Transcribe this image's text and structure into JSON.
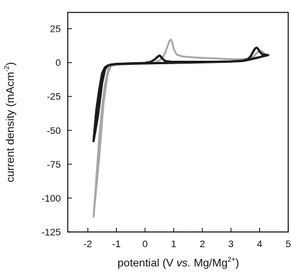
{
  "chart_data": {
    "type": "line",
    "title": "",
    "xlabel_parts": {
      "prefix": "potential (V ",
      "italic": "vs.",
      "middle": " Mg/Mg",
      "sup": "2+",
      "suffix": ")"
    },
    "ylabel_parts": {
      "prefix": "current density (mAcm",
      "sup": "-2",
      "suffix": ")"
    },
    "xlim": [
      -2.7,
      5.0
    ],
    "ylim": [
      -125,
      37
    ],
    "xticks": [
      -2,
      -1,
      0,
      1,
      2,
      3,
      4,
      5
    ],
    "yticks": [
      25,
      0,
      -25,
      -50,
      -75,
      -100,
      -125
    ],
    "xtick_labels": [
      "-2",
      "-1",
      "0",
      "1",
      "2",
      "3",
      "4",
      "5"
    ],
    "ytick_labels": [
      "25",
      "0",
      "-25",
      "-50",
      "-75",
      "-100",
      "-125"
    ],
    "grid": false,
    "legend": "none",
    "series": [
      {
        "color": "#a6a6a6",
        "x": [
          -1.8,
          -1.6,
          -1.45,
          -1.3,
          -1.2,
          -1.1,
          -1.0,
          -0.5,
          0.0,
          0.3,
          0.5,
          0.6,
          0.7,
          0.8,
          0.85,
          0.9,
          0.95,
          1.0,
          1.1,
          1.3,
          1.6,
          2.0,
          2.5,
          3.0,
          3.4,
          3.6,
          3.8,
          3.9,
          4.0,
          4.1,
          4.2,
          4.1,
          3.9,
          3.5,
          3.0,
          2.5,
          2.0,
          1.5,
          1.0,
          0.5,
          0.0,
          -0.5,
          -1.0,
          -1.1,
          -1.2,
          -1.25,
          -1.3,
          -1.4,
          -1.5,
          -1.6,
          -1.7,
          -1.8
        ],
        "y": [
          -114,
          -70,
          -30,
          -8,
          -3,
          -1.8,
          -1.4,
          -1.1,
          -0.8,
          -0.3,
          1.5,
          3.5,
          7,
          13,
          16,
          17,
          15,
          10,
          6,
          4.5,
          4,
          3.5,
          3,
          2.5,
          2.5,
          3,
          4.5,
          7,
          9,
          8,
          6,
          5,
          3,
          1.5,
          1,
          0.5,
          0.3,
          0,
          -0.2,
          -0.5,
          -0.8,
          -1,
          -1.3,
          -1.6,
          -2.2,
          -3,
          -6,
          -16,
          -32,
          -55,
          -85,
          -114
        ]
      },
      {
        "color": "#1a1a1a",
        "x": [
          -1.8,
          -1.65,
          -1.5,
          -1.4,
          -1.3,
          -1.2,
          -1.0,
          -0.5,
          0.0,
          0.2,
          0.35,
          0.45,
          0.5,
          0.55,
          0.6,
          0.7,
          0.9,
          1.2,
          1.6,
          2.0,
          2.5,
          3.0,
          3.4,
          3.6,
          3.7,
          3.8,
          3.85,
          3.9,
          3.95,
          4.0,
          4.1,
          4.3,
          4.2,
          4.0,
          3.8,
          3.5,
          3.0,
          2.5,
          2.0,
          1.5,
          1.0,
          0.5,
          0.0,
          -0.5,
          -1.0,
          -1.2,
          -1.3,
          -1.4,
          -1.5,
          -1.6,
          -1.7,
          -1.8
        ],
        "y": [
          -58,
          -40,
          -15,
          -5,
          -2.2,
          -1.5,
          -1,
          -0.6,
          -0.3,
          0.5,
          2.5,
          4.5,
          5.2,
          4.5,
          3,
          1.2,
          0.6,
          0.5,
          0.5,
          0.5,
          0.6,
          0.8,
          1.2,
          2.5,
          5,
          9,
          10.5,
          11,
          10,
          8,
          6,
          5.5,
          5,
          4,
          3,
          1.5,
          0.8,
          0.5,
          0.2,
          0,
          -0.2,
          -0.4,
          -0.6,
          -0.8,
          -1.2,
          -1.6,
          -2.2,
          -3.5,
          -8,
          -20,
          -35,
          -58
        ]
      }
    ]
  }
}
